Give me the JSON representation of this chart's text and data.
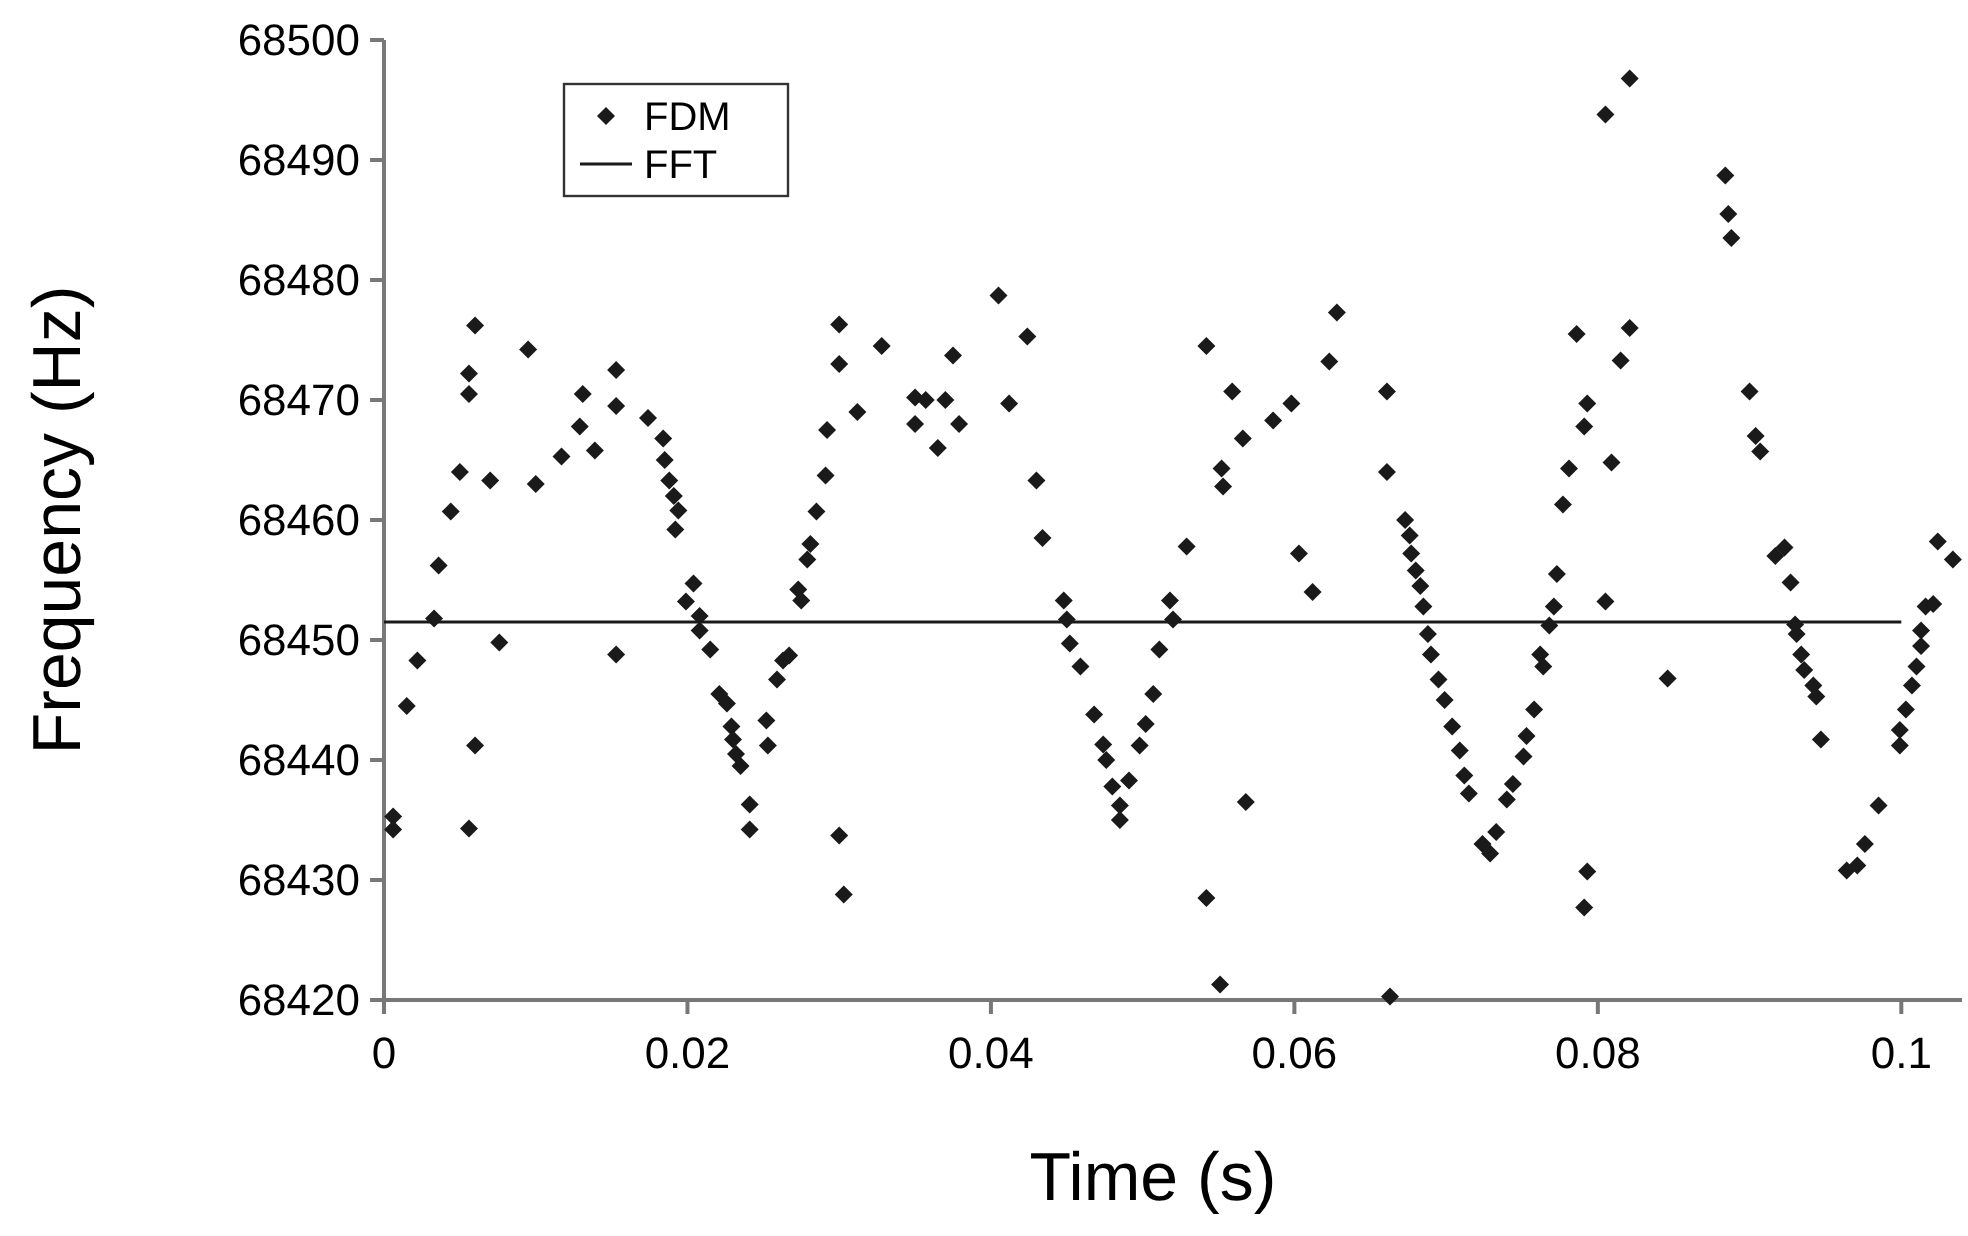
{
  "chart_data": {
    "type": "scatter",
    "xlabel": "Time (s)",
    "ylabel": "Frequency (Hz)",
    "xlim": [
      0,
      0.104
    ],
    "ylim": [
      68420,
      68500
    ],
    "xticks": [
      0,
      0.02,
      0.04,
      0.06,
      0.08,
      0.1
    ],
    "yticks": [
      68420,
      68430,
      68440,
      68450,
      68460,
      68470,
      68480,
      68490,
      68500
    ],
    "grid": false,
    "legend": "top left",
    "series": [
      {
        "name": "FDM",
        "color": "#1a1a1a",
        "marker": "diamond",
        "x": [
          0.0006,
          0.0006,
          0.0015,
          0.0022,
          0.0033,
          0.0036,
          0.0044,
          0.005,
          0.0056,
          0.0056,
          0.006,
          0.006,
          0.0056,
          0.007,
          0.0076,
          0.0095,
          0.01,
          0.0117,
          0.0129,
          0.0131,
          0.0139,
          0.0153,
          0.0153,
          0.0153,
          0.0174,
          0.0184,
          0.0185,
          0.0188,
          0.0191,
          0.0194,
          0.0192,
          0.0204,
          0.0199,
          0.0208,
          0.0208,
          0.0215,
          0.0221,
          0.0226,
          0.0229,
          0.023,
          0.0232,
          0.0235,
          0.0241,
          0.0241,
          0.0252,
          0.0253,
          0.0259,
          0.0263,
          0.0267,
          0.0273,
          0.0275,
          0.0279,
          0.0281,
          0.0285,
          0.0291,
          0.0292,
          0.03,
          0.03,
          0.03,
          0.0303,
          0.0312,
          0.0328,
          0.035,
          0.035,
          0.0357,
          0.0365,
          0.037,
          0.0375,
          0.0379,
          0.0405,
          0.0412,
          0.0424,
          0.043,
          0.0434,
          0.0448,
          0.045,
          0.0452,
          0.0459,
          0.0468,
          0.0474,
          0.0476,
          0.048,
          0.0485,
          0.0485,
          0.0491,
          0.0498,
          0.0502,
          0.0507,
          0.0511,
          0.0518,
          0.052,
          0.0529,
          0.0542,
          0.0542,
          0.0551,
          0.0552,
          0.0553,
          0.0559,
          0.0566,
          0.0568,
          0.0586,
          0.0598,
          0.0603,
          0.0612,
          0.0623,
          0.0628,
          0.0661,
          0.0661,
          0.0663,
          0.0673,
          0.0676,
          0.0677,
          0.068,
          0.0683,
          0.0685,
          0.0688,
          0.069,
          0.0695,
          0.0699,
          0.0704,
          0.0709,
          0.0712,
          0.0715,
          0.0724,
          0.0729,
          0.0733,
          0.074,
          0.0744,
          0.0751,
          0.0753,
          0.0758,
          0.0762,
          0.0764,
          0.0768,
          0.0771,
          0.0773,
          0.0777,
          0.0781,
          0.0786,
          0.0791,
          0.0793,
          0.0793,
          0.0791,
          0.0805,
          0.0805,
          0.0809,
          0.0815,
          0.0821,
          0.0821,
          0.0846,
          0.0884,
          0.0886,
          0.0888,
          0.09,
          0.0904,
          0.0907,
          0.0917,
          0.0923,
          0.0927,
          0.093,
          0.0931,
          0.0934,
          0.0936,
          0.0942,
          0.0944,
          0.0947,
          0.0964,
          0.0971,
          0.0976,
          0.0985,
          0.0999,
          0.0999,
          0.1003,
          0.1007,
          0.101,
          0.1013,
          0.1013,
          0.1016,
          0.1021,
          0.1024,
          0.1034
        ],
        "values": [
          68435.3,
          68434.2,
          68444.5,
          68448.3,
          68451.8,
          68456.2,
          68460.7,
          68464,
          68470.5,
          68472.2,
          68476.2,
          68441.2,
          68434.3,
          68463.3,
          68449.8,
          68474.2,
          68463,
          68465.3,
          68467.8,
          68470.5,
          68465.8,
          68472.5,
          68469.5,
          68448.8,
          68468.5,
          68466.8,
          68465,
          68463.3,
          68462,
          68460.8,
          68459.2,
          68454.7,
          68453.2,
          68452,
          68450.8,
          68449.2,
          68445.5,
          68444.7,
          68442.8,
          68441.7,
          68440.5,
          68439.5,
          68436.3,
          68434.2,
          68443.3,
          68441.2,
          68446.7,
          68448.3,
          68448.7,
          68454.2,
          68453.3,
          68456.7,
          68458,
          68460.7,
          68463.7,
          68467.5,
          68473,
          68476.3,
          68433.7,
          68428.8,
          68469,
          68474.5,
          68470.2,
          68468,
          68470,
          68466,
          68470,
          68473.7,
          68468,
          68478.7,
          68469.7,
          68475.3,
          68463.3,
          68458.5,
          68453.3,
          68451.7,
          68449.7,
          68447.8,
          68443.8,
          68441.3,
          68440,
          68437.8,
          68436.2,
          68435,
          68438.3,
          68441.2,
          68443,
          68445.5,
          68449.2,
          68453.3,
          68451.7,
          68457.8,
          68474.5,
          68428.5,
          68421.3,
          68464.3,
          68462.8,
          68470.7,
          68466.8,
          68436.5,
          68468.3,
          68469.7,
          68457.2,
          68454,
          68473.2,
          68477.3,
          68470.7,
          68464,
          68420.3,
          68460,
          68458.7,
          68457.2,
          68455.8,
          68454.5,
          68452.8,
          68450.5,
          68448.8,
          68446.7,
          68445,
          68442.8,
          68440.8,
          68438.7,
          68437.2,
          68433,
          68432.2,
          68434,
          68436.7,
          68438,
          68440.3,
          68442,
          68444.2,
          68448.8,
          68447.8,
          68451.2,
          68452.8,
          68455.5,
          68461.3,
          68464.3,
          68475.5,
          68467.8,
          68469.7,
          68430.7,
          68427.7,
          68493.8,
          68453.2,
          68464.8,
          68473.3,
          68476,
          68496.8,
          68446.8,
          68488.7,
          68485.5,
          68483.5,
          68470.7,
          68467,
          68465.7,
          68457,
          68457.7,
          68454.8,
          68451.3,
          68450.5,
          68448.8,
          68447.5,
          68446.2,
          68445.3,
          68441.7,
          68430.8,
          68431.2,
          68433,
          68436.2,
          68441.2,
          68442.5,
          68444.2,
          68446.2,
          68447.8,
          68449.5,
          68450.8,
          68452.8,
          68453,
          68458.2,
          68456.7
        ]
      },
      {
        "name": "FFT",
        "type": "line",
        "color": "#1a1a1a",
        "line_style": "solid",
        "x": [
          0,
          0.1
        ],
        "values": [
          68451.5,
          68451.5
        ]
      }
    ]
  }
}
